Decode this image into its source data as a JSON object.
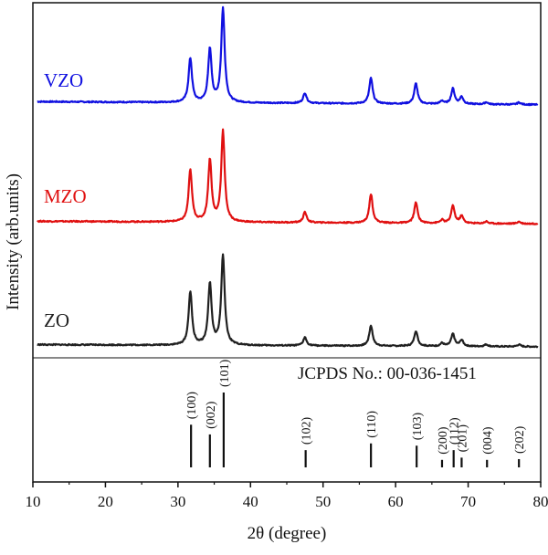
{
  "chart_data": {
    "type": "line",
    "xlabel": "2θ (degree)",
    "ylabel": "Intensity (arb.units)",
    "xlim": [
      10,
      80
    ],
    "xticks": [
      10,
      20,
      30,
      40,
      50,
      60,
      70,
      80
    ],
    "y_ticks_shown": false,
    "grid": false,
    "series": [
      {
        "name": "VZO",
        "color": "#1010e0",
        "baseline": 0.06,
        "noise": 0.006,
        "peaks": [
          {
            "x": 31.7,
            "h": 0.43
          },
          {
            "x": 34.4,
            "h": 0.52
          },
          {
            "x": 36.2,
            "h": 0.92
          },
          {
            "x": 47.5,
            "h": 0.1
          },
          {
            "x": 56.6,
            "h": 0.25
          },
          {
            "x": 62.8,
            "h": 0.2
          },
          {
            "x": 66.4,
            "h": 0.03
          },
          {
            "x": 67.9,
            "h": 0.15
          },
          {
            "x": 69.1,
            "h": 0.07
          },
          {
            "x": 72.5,
            "h": 0.02
          },
          {
            "x": 77.0,
            "h": 0.02
          }
        ]
      },
      {
        "name": "MZO",
        "color": "#e01010",
        "baseline": 0.05,
        "noise": 0.006,
        "peaks": [
          {
            "x": 31.7,
            "h": 0.5
          },
          {
            "x": 34.4,
            "h": 0.6
          },
          {
            "x": 36.2,
            "h": 0.88
          },
          {
            "x": 47.5,
            "h": 0.1
          },
          {
            "x": 56.6,
            "h": 0.28
          },
          {
            "x": 62.8,
            "h": 0.2
          },
          {
            "x": 66.4,
            "h": 0.03
          },
          {
            "x": 67.9,
            "h": 0.17
          },
          {
            "x": 69.1,
            "h": 0.07
          },
          {
            "x": 72.5,
            "h": 0.02
          },
          {
            "x": 77.0,
            "h": 0.02
          }
        ]
      },
      {
        "name": "ZO",
        "color": "#202020",
        "baseline": 0.04,
        "noise": 0.006,
        "peaks": [
          {
            "x": 31.7,
            "h": 0.52
          },
          {
            "x": 34.4,
            "h": 0.6
          },
          {
            "x": 36.2,
            "h": 0.88
          },
          {
            "x": 47.5,
            "h": 0.08
          },
          {
            "x": 56.6,
            "h": 0.2
          },
          {
            "x": 62.8,
            "h": 0.15
          },
          {
            "x": 66.4,
            "h": 0.03
          },
          {
            "x": 67.9,
            "h": 0.12
          },
          {
            "x": 69.1,
            "h": 0.06
          },
          {
            "x": 72.5,
            "h": 0.02
          },
          {
            "x": 77.0,
            "h": 0.02
          }
        ]
      }
    ],
    "reference": {
      "label": "JCPDS No.: 00-036-1451",
      "lines": [
        {
          "x": 31.8,
          "label": "(100)",
          "rel": 0.57
        },
        {
          "x": 34.4,
          "label": "(002)",
          "rel": 0.44
        },
        {
          "x": 36.3,
          "label": "(101)",
          "rel": 1.0
        },
        {
          "x": 47.6,
          "label": "(102)",
          "rel": 0.23
        },
        {
          "x": 56.6,
          "label": "(110)",
          "rel": 0.32
        },
        {
          "x": 62.9,
          "label": "(103)",
          "rel": 0.29
        },
        {
          "x": 66.4,
          "label": "(200)",
          "rel": 0.1
        },
        {
          "x": 68.0,
          "label": "(112)",
          "rel": 0.23
        },
        {
          "x": 69.1,
          "label": "(201)",
          "rel": 0.13
        },
        {
          "x": 72.6,
          "label": "(004)",
          "rel": 0.1
        },
        {
          "x": 77.0,
          "label": "(202)",
          "rel": 0.11
        }
      ]
    }
  }
}
